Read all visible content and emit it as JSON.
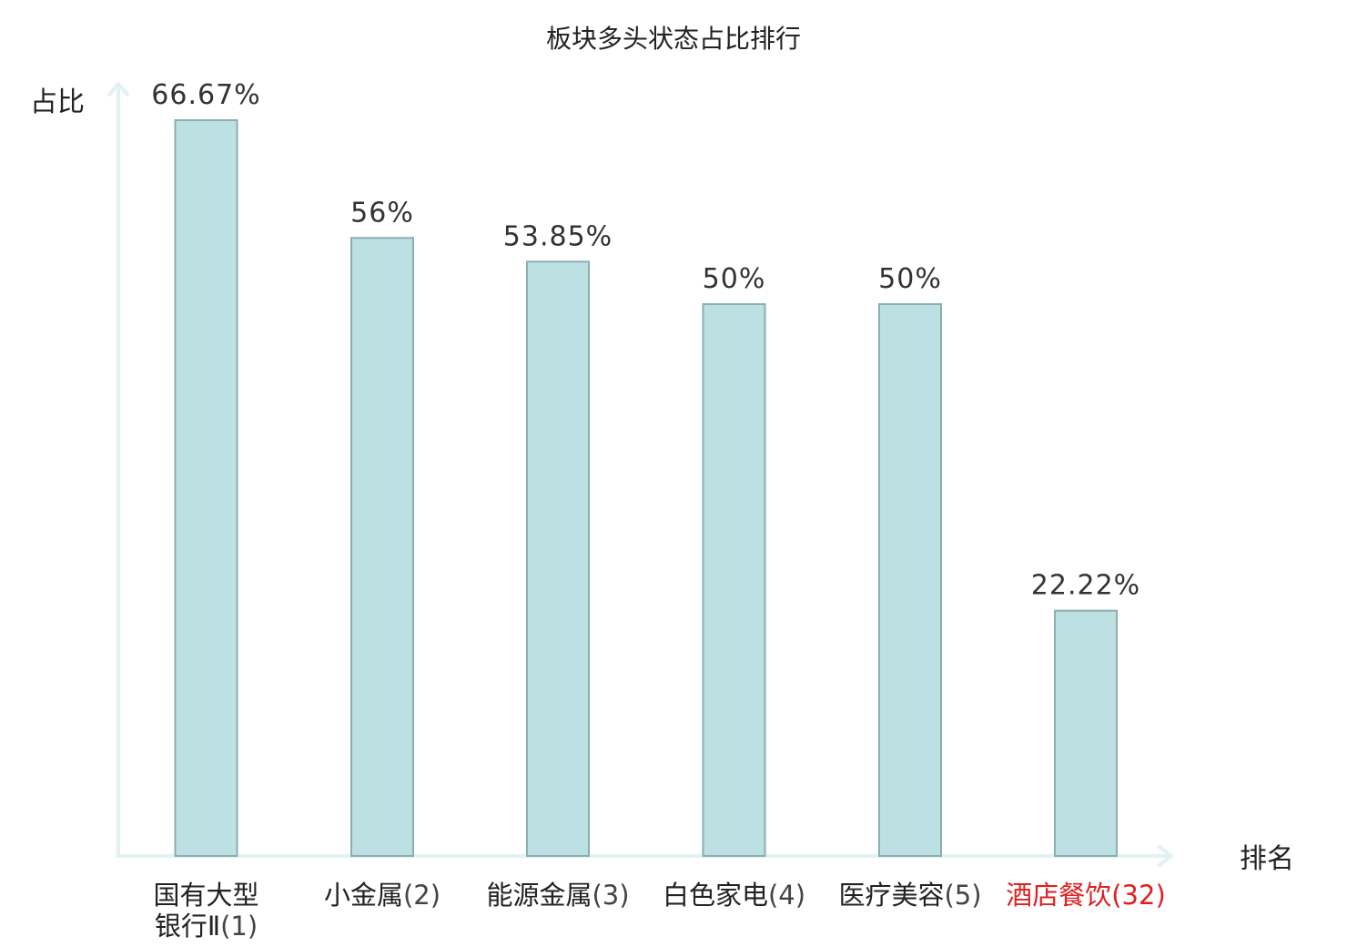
{
  "chart_data": {
    "type": "bar",
    "title": "板块多头状态占比排行",
    "xlabel": "排名",
    "ylabel": "占比",
    "categories": [
      {
        "name_lines": [
          "国有大型",
          "银行Ⅱ"
        ],
        "rank": "(1)"
      },
      {
        "name_lines": [
          "小金属"
        ],
        "rank": "(2)"
      },
      {
        "name_lines": [
          "能源金属"
        ],
        "rank": "(3)"
      },
      {
        "name_lines": [
          "白色家电"
        ],
        "rank": "(4)"
      },
      {
        "name_lines": [
          "医疗美容"
        ],
        "rank": "(5)"
      },
      {
        "name_lines": [
          "酒店餐饮"
        ],
        "rank": "(32)"
      }
    ],
    "values": [
      66.67,
      56,
      53.85,
      50,
      50,
      22.22
    ],
    "value_labels": [
      "66.67%",
      "56%",
      "53.85%",
      "50%",
      "50%",
      "22.22%"
    ],
    "ylim": [
      0,
      70
    ],
    "highlight_index": 5,
    "colors": {
      "bar_fill": "#bde0e3",
      "bar_stroke": "#8aaeb1",
      "axis": "#e2f2f0",
      "highlight_text": "#e01f1f"
    },
    "grid": false,
    "legend": "none"
  }
}
